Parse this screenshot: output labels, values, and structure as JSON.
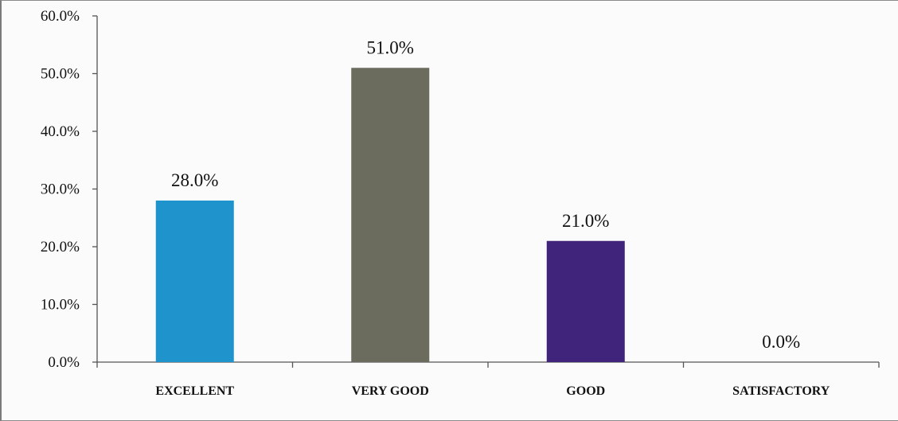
{
  "chart_data": {
    "type": "bar",
    "title": "",
    "xlabel": "",
    "ylabel": "",
    "categories": [
      "EXCELLENT",
      "VERY GOOD",
      "GOOD",
      "SATISFACTORY"
    ],
    "values": [
      28.0,
      51.0,
      21.0,
      0.0
    ],
    "data_labels": [
      "28.0%",
      "51.0%",
      "21.0%",
      "0.0%"
    ],
    "bar_colors": [
      "#1f94cc",
      "#6b6b5e",
      "#40237a",
      "#ffffff"
    ],
    "ylim": [
      0,
      60
    ],
    "y_ticks": [
      0,
      10,
      20,
      30,
      40,
      50,
      60
    ],
    "y_tick_labels": [
      "0.0%",
      "10.0%",
      "20.0%",
      "30.0%",
      "40.0%",
      "50.0%",
      "60.0%"
    ],
    "grid": false,
    "legend": "none"
  }
}
